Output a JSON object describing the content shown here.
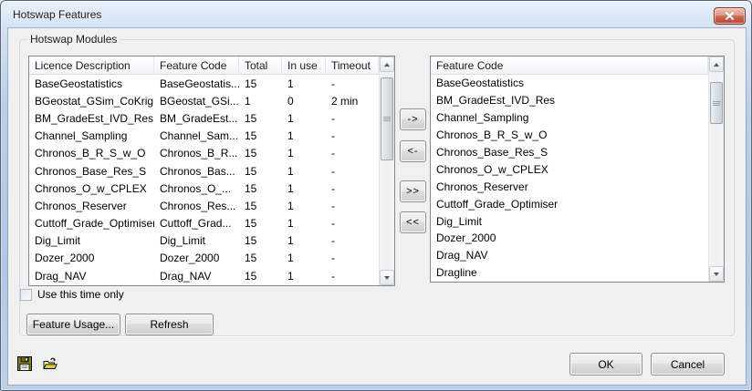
{
  "window": {
    "title": "Hotswap Features"
  },
  "group": {
    "label": "Hotswap Modules"
  },
  "left_table": {
    "columns": [
      "Licence Description",
      "Feature Code",
      "Total",
      "In use",
      "Timeout"
    ],
    "rows": [
      [
        "BaseGeostatistics",
        "BaseGeostatis...",
        "15",
        "1",
        "-"
      ],
      [
        "BGeostat_GSim_CoKrig",
        "BGeostat_GSi...",
        "1",
        "0",
        "2 min"
      ],
      [
        "BM_GradeEst_IVD_Res",
        "BM_GradeEst...",
        "15",
        "1",
        "-"
      ],
      [
        "Channel_Sampling",
        "Channel_Sam...",
        "15",
        "1",
        "-"
      ],
      [
        "Chronos_B_R_S_w_O",
        "Chronos_B_R...",
        "15",
        "1",
        "-"
      ],
      [
        "Chronos_Base_Res_S",
        "Chronos_Bas...",
        "15",
        "1",
        "-"
      ],
      [
        "Chronos_O_w_CPLEX",
        "Chronos_O_...",
        "15",
        "1",
        "-"
      ],
      [
        "Chronos_Reserver",
        "Chronos_Res...",
        "15",
        "1",
        "-"
      ],
      [
        "Cuttoff_Grade_Optimiser",
        "Cuttoff_Grad...",
        "15",
        "1",
        "-"
      ],
      [
        "Dig_Limit",
        "Dig_Limit",
        "15",
        "1",
        "-"
      ],
      [
        "Dozer_2000",
        "Dozer_2000",
        "15",
        "1",
        "-"
      ],
      [
        "Drag_NAV",
        "Drag_NAV",
        "15",
        "1",
        "-"
      ]
    ]
  },
  "right_table": {
    "columns": [
      "Feature Code"
    ],
    "rows": [
      "BaseGeostatistics",
      "BM_GradeEst_IVD_Res",
      "Channel_Sampling",
      "Chronos_B_R_S_w_O",
      "Chronos_Base_Res_S",
      "Chronos_O_w_CPLEX",
      "Chronos_Reserver",
      "Cuttoff_Grade_Optimiser",
      "Dig_Limit",
      "Dozer_2000",
      "Drag_NAV",
      "Dragline"
    ]
  },
  "transfer_labels": [
    "->",
    "<-",
    ">>",
    "<<"
  ],
  "checkbox": {
    "label": "Use this time only",
    "checked": false
  },
  "buttons": {
    "feature_usage": "Feature Usage...",
    "refresh": "Refresh",
    "ok": "OK",
    "cancel": "Cancel"
  },
  "icons": [
    "save-icon",
    "open-folder-icon",
    "close-icon"
  ],
  "colors": {
    "titlebar_top": "#e9f2fb",
    "titlebar_bottom": "#b3c8e1",
    "close_button_red": "#bd4c36",
    "client_background": "#f0f0f0",
    "list_border": "#828790",
    "selection_none": "#ffffff"
  }
}
